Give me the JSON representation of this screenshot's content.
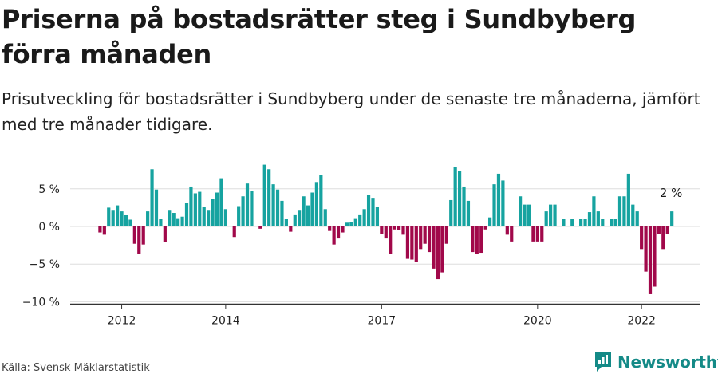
{
  "header": {
    "title": "Priserna på bostadsrätter steg i Sundbyberg förra månaden",
    "subtitle": "Prisutveckling för bostadsrätter i Sundbyberg under de senaste tre månaderna, jämfört med tre månader tidigare."
  },
  "footer": {
    "source": "Källa: Svensk Mäklarstatistik",
    "brand": "Newsworthy"
  },
  "colors": {
    "positive": "#16a3a0",
    "negative": "#a1084a",
    "grid": "#dddddd",
    "axis": "#333333",
    "brand": "#148a87"
  },
  "chart_data": {
    "type": "bar",
    "start": "2011-08",
    "frequency": "monthly",
    "values": [
      -0.8,
      -1.1,
      2.5,
      2.2,
      2.8,
      2.0,
      1.5,
      0.9,
      -2.3,
      -3.6,
      -2.4,
      2.0,
      7.6,
      4.9,
      1.0,
      -2.1,
      2.2,
      1.8,
      1.1,
      1.3,
      3.1,
      5.3,
      4.4,
      4.6,
      2.6,
      2.2,
      3.7,
      4.5,
      6.4,
      2.3,
      0.0,
      -1.4,
      2.7,
      4.0,
      5.7,
      4.7,
      0.0,
      -0.3,
      8.2,
      7.6,
      5.6,
      4.9,
      3.4,
      1.0,
      -0.7,
      1.6,
      2.2,
      4.0,
      2.8,
      4.5,
      5.9,
      6.8,
      2.3,
      -0.6,
      -2.4,
      -1.6,
      -0.8,
      0.5,
      0.6,
      1.1,
      1.6,
      2.3,
      4.2,
      3.8,
      2.6,
      -1.0,
      -1.6,
      -3.7,
      -0.4,
      -0.5,
      -1.1,
      -4.3,
      -4.4,
      -4.7,
      -3.0,
      -2.3,
      -3.4,
      -5.6,
      -7.0,
      -6.1,
      -2.3,
      3.5,
      7.9,
      7.4,
      5.3,
      3.4,
      -3.4,
      -3.6,
      -3.5,
      -0.4,
      1.2,
      5.6,
      7.0,
      6.1,
      -1.1,
      -2.0,
      0.0,
      4.0,
      2.9,
      2.9,
      -2.0,
      -2.0,
      -2.0,
      2.0,
      2.9,
      2.9,
      0.0,
      1.0,
      0.0,
      1.0,
      0.0,
      1.0,
      1.0,
      1.9,
      4.0,
      2.0,
      1.0,
      0.0,
      1.0,
      1.0,
      4.0,
      4.0,
      7.0,
      2.9,
      2.0,
      -3.0,
      -6.0,
      -9.0,
      -8.0,
      -1.0,
      -3.0,
      -1.0,
      2.0
    ],
    "ylim": [
      -10,
      9
    ],
    "yticks": [
      5,
      0,
      -5,
      -10
    ],
    "ytick_labels": [
      "5 %",
      "0 %",
      "−5 %",
      "−10 %"
    ],
    "xticks": [
      {
        "year": 2012,
        "label": "2012"
      },
      {
        "year": 2014,
        "label": "2014"
      },
      {
        "year": 2017,
        "label": "2017"
      },
      {
        "year": 2020,
        "label": "2020"
      },
      {
        "year": 2022,
        "label": "2022"
      }
    ],
    "last_value_label": "2 %",
    "grid": true
  }
}
